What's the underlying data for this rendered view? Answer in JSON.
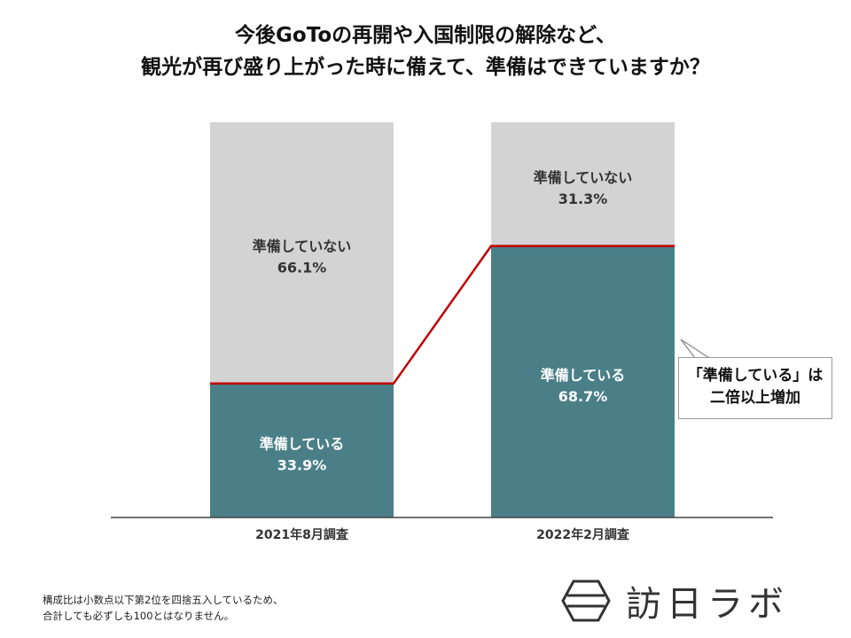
{
  "title": {
    "line1": "今後GoToの再開や入国制限の解除など、",
    "line2": "観光が再び盛り上がった時に備えて、準備はできていますか？"
  },
  "chart_data": {
    "type": "bar",
    "stacked": true,
    "categories": [
      "2021年8月調査",
      "2022年2月調査"
    ],
    "series": [
      {
        "name": "準備している",
        "values": [
          33.9,
          68.7
        ],
        "color": "#4a7f87",
        "label_color": "#ffffff"
      },
      {
        "name": "準備していない",
        "values": [
          66.1,
          31.3
        ],
        "color": "#d3d3d3",
        "label_color": "#333333"
      }
    ],
    "value_suffix": "%",
    "ylim": [
      0,
      100
    ],
    "connector_color": "#c00000",
    "grid": false
  },
  "callout": {
    "line1": "「準備している」は",
    "line2": "二倍以上増加"
  },
  "footnote": {
    "line1": "構成比は小数点以下第2位を四捨五入しているため、",
    "line2": "合計しても必ずしも100とはなりません。"
  },
  "logo": {
    "text": "訪日ラボ",
    "icon": "hexagon-logo-icon"
  }
}
